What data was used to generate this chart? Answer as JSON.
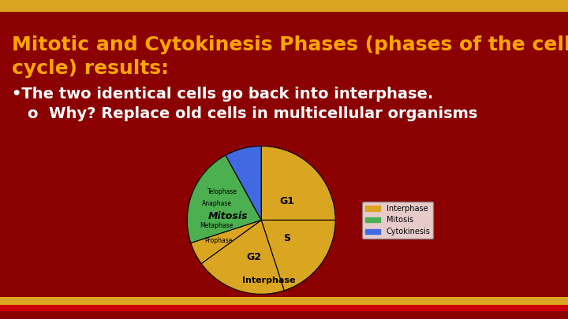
{
  "background_color": "#8B0000",
  "top_bar_color": "#DAA520",
  "bottom_bar1_color": "#DAA520",
  "bottom_bar2_color": "#CC0000",
  "bottom_bar3_color": "#8B0000",
  "title": "Mitotic and Cytokinesis Phases (phases of the cell\ncycle) results:",
  "title_color": "#FFA500",
  "title_fontsize": 18,
  "bullet1": "•The two identical cells go back into interphase.",
  "bullet2": "o  Why? Replace old cells in multicellular organisms",
  "bullet_color": "#FFFFFF",
  "bullet_fontsize": 14,
  "pie_slices": [
    {
      "label": "G1",
      "value": 25,
      "color": "#DAA520"
    },
    {
      "label": "S",
      "value": 20,
      "color": "#DAA520"
    },
    {
      "label": "G2",
      "value": 20,
      "color": "#DAA520"
    },
    {
      "label": "Interphase",
      "value": 5,
      "color": "#DAA520"
    },
    {
      "label": "Mitosis",
      "value": 22,
      "color": "#4CAF50"
    },
    {
      "label": "Cytokinesis",
      "value": 8,
      "color": "#4169E1"
    }
  ],
  "legend_items": [
    {
      "label": "Interphase",
      "color": "#DAA520"
    },
    {
      "label": "Mitosis",
      "color": "#4CAF50"
    },
    {
      "label": "Cytokinesis",
      "color": "#4169E1"
    }
  ]
}
